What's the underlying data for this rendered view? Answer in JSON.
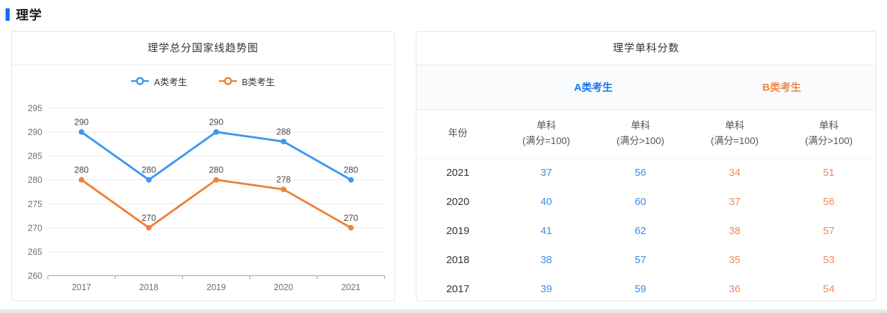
{
  "page": {
    "title": "理学"
  },
  "accent": {
    "blue": "#1272f0",
    "chart_blue": "#3b97f2",
    "chart_orange": "#f08137"
  },
  "chart_panel": {
    "title": "理学总分国家线趋势图"
  },
  "chart_data": {
    "type": "line",
    "title": "理学总分国家线趋势图",
    "x": [
      "2017",
      "2018",
      "2019",
      "2020",
      "2021"
    ],
    "series": [
      {
        "name": "A类考生",
        "color": "#3b97f2",
        "values": [
          290,
          280,
          290,
          288,
          280
        ]
      },
      {
        "name": "B类考生",
        "color": "#f08137",
        "values": [
          280,
          270,
          280,
          278,
          270
        ]
      }
    ],
    "ylim": [
      260,
      295
    ],
    "ytick_step": 5,
    "grid": true,
    "legend_position": "top",
    "data_labels": true
  },
  "table_panel": {
    "title": "理学单科分数",
    "group_headers": [
      {
        "label": "A类考生",
        "color": "#1677f0"
      },
      {
        "label": "B类考生",
        "color": "#f5863f"
      }
    ],
    "columns": [
      {
        "line1": "年份",
        "line2": ""
      },
      {
        "line1": "单科",
        "line2": "(满分=100)"
      },
      {
        "line1": "单科",
        "line2": "(满分>100)"
      },
      {
        "line1": "单科",
        "line2": "(满分=100)"
      },
      {
        "line1": "单科",
        "line2": "(满分>100)"
      }
    ],
    "rows": [
      {
        "year": "2021",
        "a1": "37",
        "a2": "56",
        "b1": "34",
        "b2": "51"
      },
      {
        "year": "2020",
        "a1": "40",
        "a2": "60",
        "b1": "37",
        "b2": "56"
      },
      {
        "year": "2019",
        "a1": "41",
        "a2": "62",
        "b1": "38",
        "b2": "57"
      },
      {
        "year": "2018",
        "a1": "38",
        "a2": "57",
        "b1": "35",
        "b2": "53"
      },
      {
        "year": "2017",
        "a1": "39",
        "a2": "59",
        "b1": "36",
        "b2": "54"
      }
    ]
  }
}
